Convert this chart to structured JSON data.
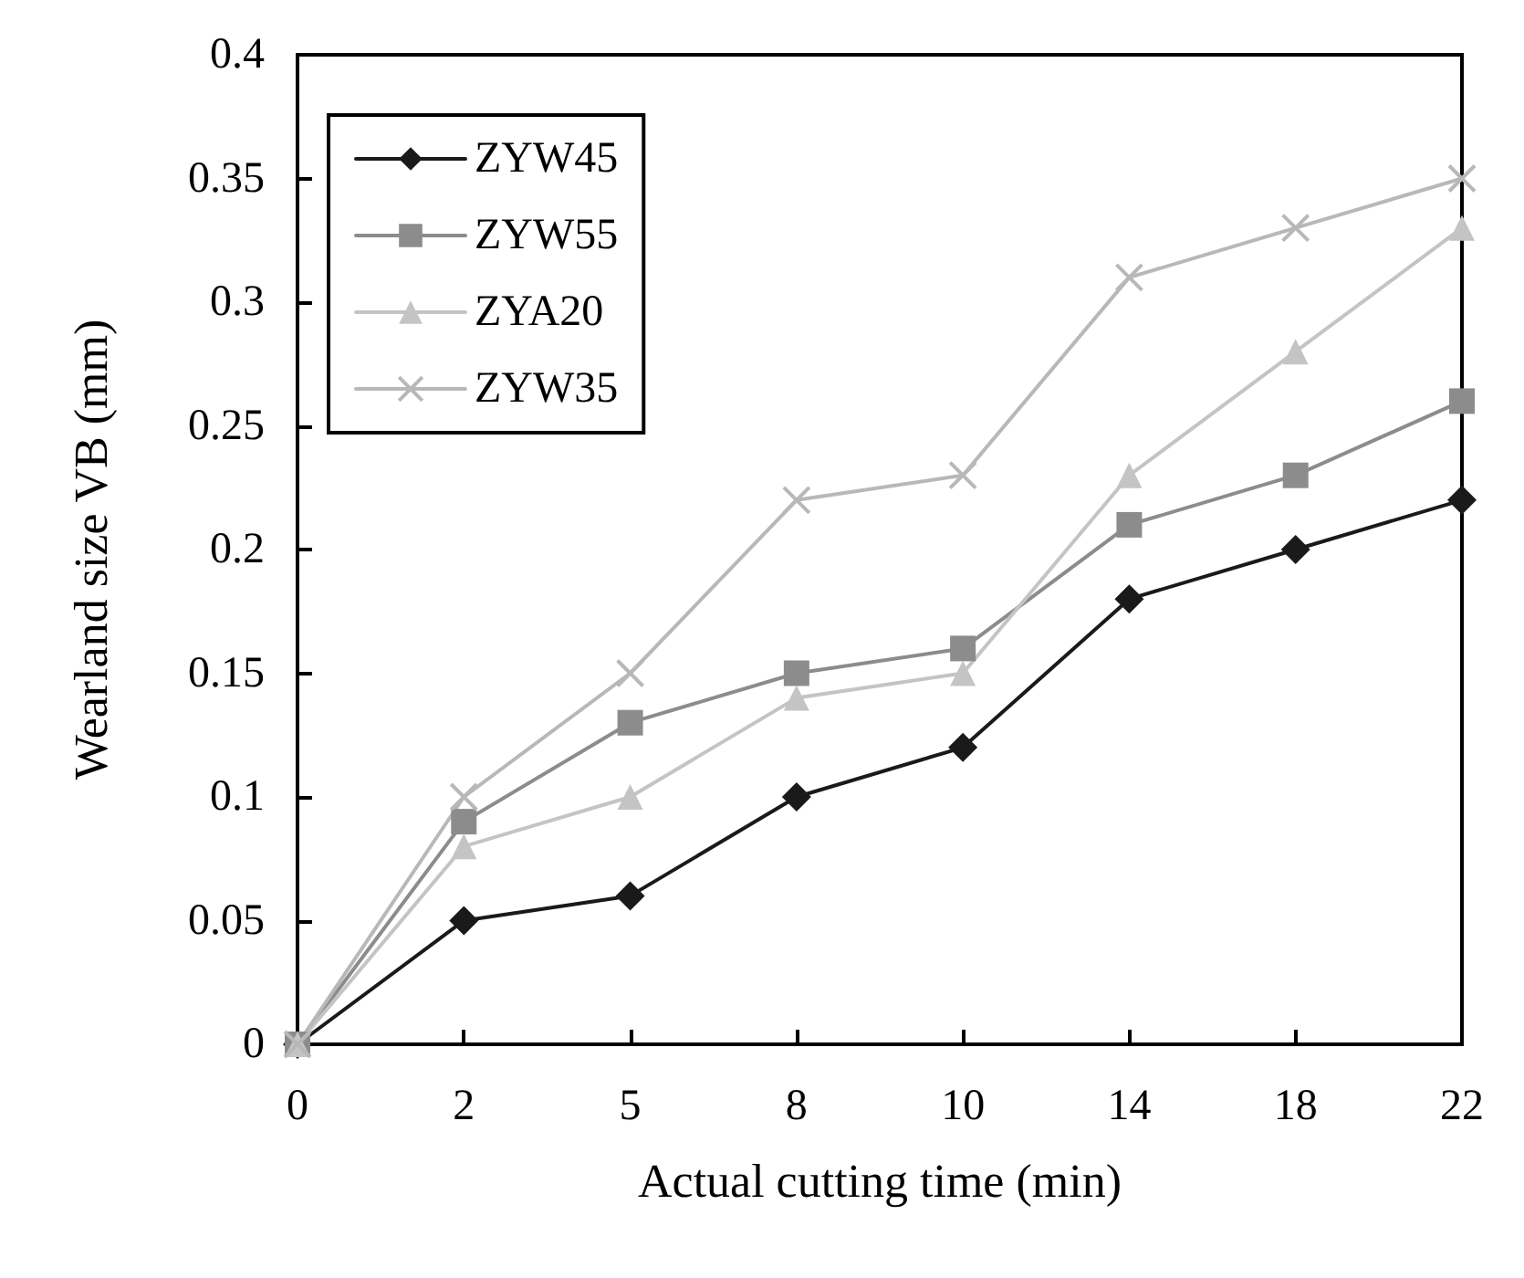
{
  "chart_data": {
    "type": "line",
    "xlabel": "Actual cutting time (min)",
    "ylabel": "Wearland size VB (mm)",
    "categories": [
      "0",
      "2",
      "5",
      "8",
      "10",
      "14",
      "18",
      "22"
    ],
    "series": [
      {
        "name": "ZYW45",
        "color": "#1a1a1a",
        "marker": "diamond",
        "values": [
          0,
          0.05,
          0.06,
          0.1,
          0.12,
          0.18,
          0.2,
          0.22
        ]
      },
      {
        "name": "ZYW55",
        "color": "#8c8c8c",
        "marker": "square",
        "values": [
          0,
          0.09,
          0.13,
          0.15,
          0.16,
          0.21,
          0.23,
          0.26
        ]
      },
      {
        "name": "ZYA20",
        "color": "#c4c4c4",
        "marker": "triangle",
        "values": [
          0,
          0.08,
          0.1,
          0.14,
          0.15,
          0.23,
          0.28,
          0.33
        ]
      },
      {
        "name": "ZYW35",
        "color": "#b8b8b8",
        "marker": "cross",
        "values": [
          0,
          0.1,
          0.15,
          0.22,
          0.23,
          0.31,
          0.33,
          0.35
        ]
      }
    ],
    "ylim": [
      0,
      0.4
    ],
    "yticks": [
      0,
      0.05,
      0.1,
      0.15,
      0.2,
      0.25,
      0.3,
      0.35,
      0.4
    ],
    "grid": false,
    "legend": "top left",
    "line_style": "solid"
  }
}
